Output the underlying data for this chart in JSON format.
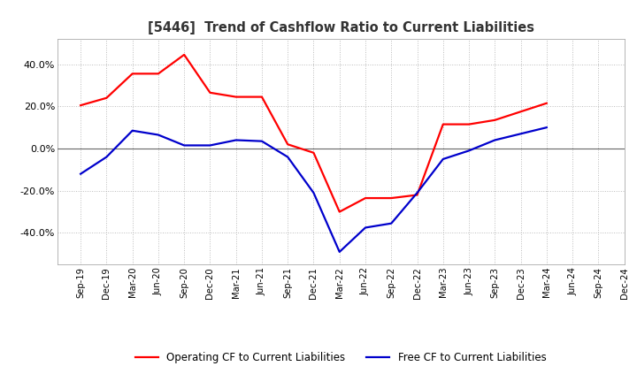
{
  "title": "[5446]  Trend of Cashflow Ratio to Current Liabilities",
  "x_labels": [
    "Sep-19",
    "Dec-19",
    "Mar-20",
    "Jun-20",
    "Sep-20",
    "Dec-20",
    "Mar-21",
    "Jun-21",
    "Sep-21",
    "Dec-21",
    "Mar-22",
    "Jun-22",
    "Sep-22",
    "Dec-22",
    "Mar-23",
    "Jun-23",
    "Sep-23",
    "Dec-23",
    "Mar-24",
    "Jun-24",
    "Sep-24",
    "Dec-24"
  ],
  "operating_cf": [
    0.205,
    0.24,
    0.355,
    0.355,
    0.445,
    0.265,
    0.245,
    0.245,
    0.02,
    -0.02,
    -0.3,
    -0.235,
    -0.235,
    -0.22,
    0.115,
    0.115,
    0.135,
    0.175,
    0.215,
    null,
    null,
    null
  ],
  "free_cf": [
    -0.12,
    -0.04,
    0.085,
    0.065,
    0.015,
    0.015,
    0.04,
    0.035,
    -0.04,
    -0.21,
    -0.49,
    -0.375,
    -0.355,
    -0.21,
    -0.05,
    -0.01,
    0.04,
    0.07,
    0.1,
    null,
    null,
    null
  ],
  "ylim": [
    -0.55,
    0.52
  ],
  "yticks": [
    -0.4,
    -0.2,
    0.0,
    0.2,
    0.4
  ],
  "operating_color": "#FF0000",
  "free_color": "#0000CC",
  "background_color": "#FFFFFF",
  "plot_bg_color": "#FFFFFF",
  "grid_color": "#BBBBBB",
  "zero_line_color": "#666666",
  "border_color": "#AAAAAA",
  "title_color": "#333333",
  "legend_op": "Operating CF to Current Liabilities",
  "legend_free": "Free CF to Current Liabilities"
}
